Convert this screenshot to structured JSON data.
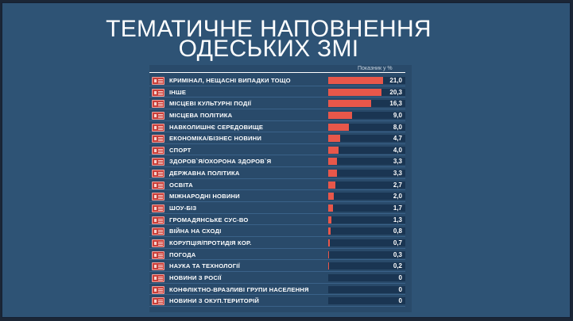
{
  "title": {
    "line1": "ТЕМАТИЧНЕ НАПОВНЕННЯ",
    "line2": "ОДЕСЬКИХ ЗМІ"
  },
  "colors": {
    "background": "#2e5375",
    "bar": "#e8574a",
    "track": "#1a3552",
    "icon": "#c9403b"
  },
  "chart_data": {
    "type": "bar",
    "orientation": "horizontal",
    "title": "ТЕМАТИЧНЕ НАПОВНЕННЯ ОДЕСЬКИХ ЗМІ",
    "value_label": "Показник у %",
    "xlim": [
      0,
      21
    ],
    "categories": [
      "КРИМІНАЛ, НЕЩАСНІ ВИПАДКИ ТОЩО",
      "ІНШЕ",
      "МІСЦЕВІ КУЛЬТУРНІ ПОДІЇ",
      "МІСЦЕВА ПОЛІТИКА",
      "НАВКОЛИШНЄ СЕРЕДОВИЩЕ",
      "ЕКОНОМІКА/БІЗНЕС НОВИНИ",
      "СПОРТ",
      "ЗДОРОВ`Я/ОХОРОНА ЗДОРОВ`Я",
      "ДЕРЖАВНА ПОЛІТИКА",
      "ОСВІТА",
      "МІЖНАРОДНІ НОВИНИ",
      "ШОУ-БІЗ",
      "ГРОМАДЯНСЬКЕ СУС-ВО",
      "ВІЙНА НА СХОДІ",
      "КОРУПЦІЯ/ПРОТИДІЯ КОР.",
      "ПОГОДА",
      "НАУКА ТА ТЕХНОЛОГІЇ",
      "НОВИНИ З РОСІЇ",
      "КОНФЛІКТНО-ВРАЗЛИВІ ГРУПИ НАСЕЛЕННЯ",
      "НОВИНИ З ОКУП.ТЕРИТОРІЙ"
    ],
    "values": [
      21.0,
      20.3,
      16.3,
      9.0,
      8.0,
      4.7,
      4.0,
      3.3,
      3.3,
      2.7,
      2.0,
      1.7,
      1.3,
      0.8,
      0.7,
      0.3,
      0.2,
      0,
      0,
      0
    ],
    "value_labels": [
      "21,0",
      "20,3",
      "16,3",
      "9,0",
      "8,0",
      "4,7",
      "4,0",
      "3,3",
      "3,3",
      "2,7",
      "2,0",
      "1,7",
      "1,3",
      "0,8",
      "0,7",
      "0,3",
      "0,2",
      "0",
      "0",
      "0"
    ]
  }
}
